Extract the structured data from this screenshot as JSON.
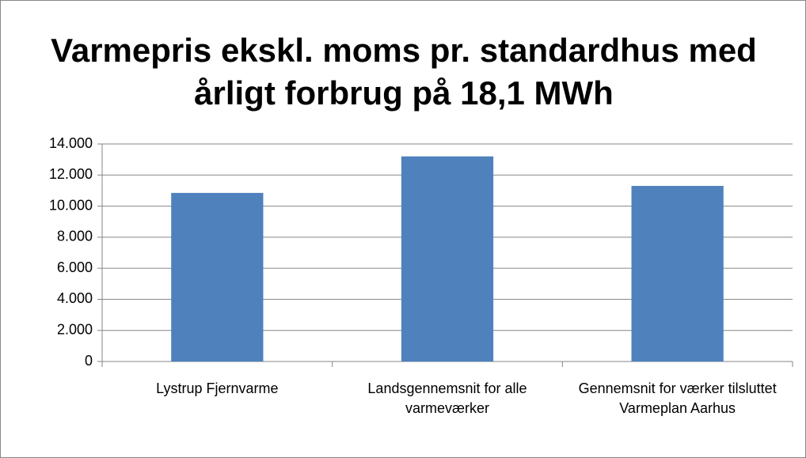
{
  "chart_data": {
    "type": "bar",
    "title": "Varmepris ekskl. moms pr. standardhus med årligt forbrug på 18,1 MWh",
    "categories": [
      "Lystrup Fjernvarme",
      "Landsgennemsnit for alle varmeværker",
      "Gennemsnit for værker tilsluttet Varmeplan Aarhus"
    ],
    "values": [
      10850,
      13200,
      11300
    ],
    "color": "#4f81bd",
    "ylim": [
      0,
      14000
    ],
    "yticks": [
      0,
      {
        "value": 2000,
        "label": "2.000"
      },
      {
        "value": 4000,
        "label": "4.000"
      },
      {
        "value": 6000,
        "label": "6.000"
      },
      {
        "value": 8000,
        "label": "8.000"
      },
      {
        "value": 10000,
        "label": "10.000"
      },
      {
        "value": 12000,
        "label": "12.000"
      },
      {
        "value": 14000,
        "label": "14.000"
      }
    ],
    "grid": true
  }
}
